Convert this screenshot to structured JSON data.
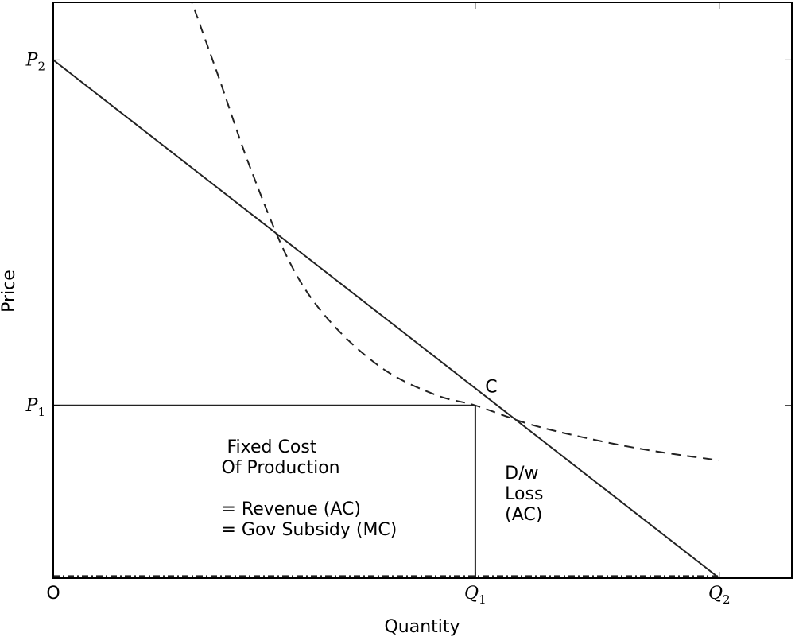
{
  "chart_data": {
    "type": "line",
    "xlabel": "Quantity",
    "ylabel": "Price",
    "xlim": [
      0,
      1.12
    ],
    "ylim": [
      0,
      1.1
    ],
    "grid": false,
    "x_ticks": [
      {
        "value": 0,
        "label": "O",
        "style": "plain"
      },
      {
        "value": 0.64,
        "label": "Q",
        "sub": "1",
        "style": "math"
      },
      {
        "value": 1.01,
        "label": "Q",
        "sub": "2",
        "style": "math"
      }
    ],
    "y_ticks": [
      {
        "value": 0.99,
        "label": "P",
        "sub": "2",
        "style": "math"
      },
      {
        "value": 0.33,
        "label": "P",
        "sub": "1",
        "style": "math"
      }
    ],
    "series": [
      {
        "style": "solid",
        "points": [
          [
            0,
            0.99
          ],
          [
            1.01,
            0
          ]
        ]
      },
      {
        "style": "dashed",
        "points": [
          [
            0.206,
            1.115
          ],
          [
            0.25,
            0.96
          ],
          [
            0.3,
            0.78
          ],
          [
            0.36,
            0.6
          ],
          [
            0.42,
            0.49
          ],
          [
            0.5,
            0.4
          ],
          [
            0.58,
            0.35
          ],
          [
            0.64,
            0.33
          ],
          [
            0.72,
            0.295
          ],
          [
            0.8,
            0.27
          ],
          [
            0.9,
            0.245
          ],
          [
            1.01,
            0.225
          ]
        ]
      },
      {
        "style": "dashdot",
        "points": [
          [
            0,
            0.004
          ],
          [
            1.01,
            0.004
          ]
        ]
      },
      {
        "style": "solid",
        "points": [
          [
            0,
            0.33
          ],
          [
            0.64,
            0.33
          ]
        ]
      },
      {
        "style": "solid",
        "points": [
          [
            0.64,
            0.33
          ],
          [
            0.64,
            0
          ]
        ]
      }
    ],
    "annotations": [
      {
        "id": "point-c",
        "x": 0.655,
        "y": 0.355,
        "lines": [
          "C"
        ]
      },
      {
        "id": "fixed-cost",
        "x": 0.255,
        "y": 0.24,
        "lines": [
          " Fixed Cost",
          "Of Production",
          "",
          "= Revenue (AC)",
          "= Gov Subsidy (MC)"
        ]
      },
      {
        "id": "dw-loss",
        "x": 0.685,
        "y": 0.19,
        "lines": [
          "D/w",
          "Loss",
          "(AC)"
        ]
      }
    ]
  }
}
